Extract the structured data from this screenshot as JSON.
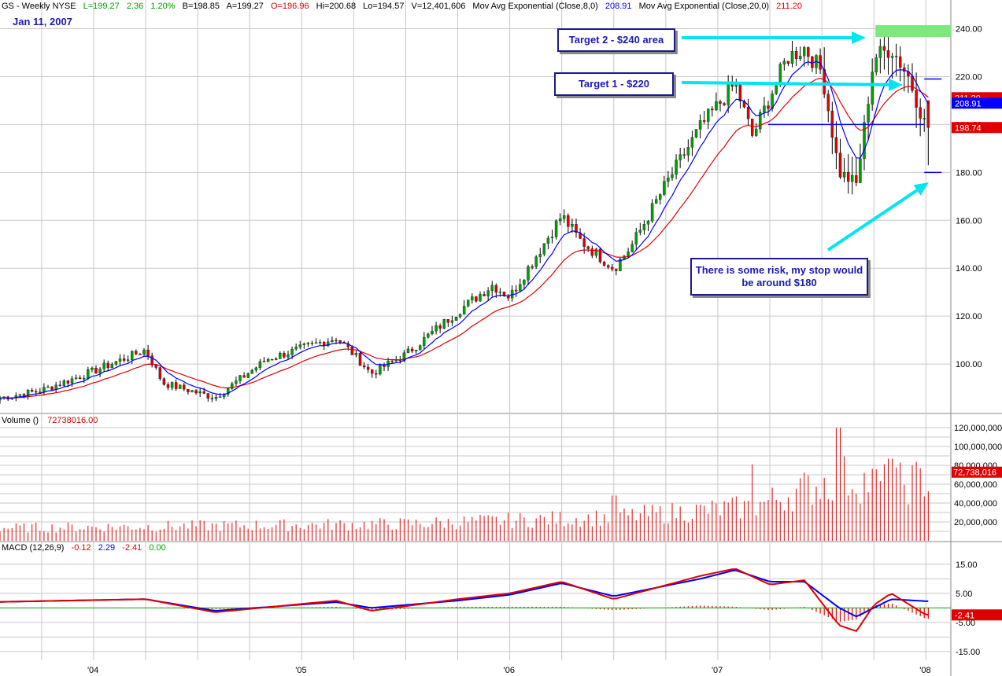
{
  "header": {
    "symbol": "GS - Weekly  NYSE",
    "last": "L=199.27",
    "change": "2.36",
    "change_pct": "1.20%",
    "bid": "B=198.85",
    "ask": "A=199.27",
    "open": "O=196.96",
    "high": "Hi=200.68",
    "low": "Lo=194.57",
    "volume": "V=12,401,606",
    "ma8_label": "Mov Avg Exponential (Close,8,0)",
    "ma8_value": "208.91",
    "ma20_label": "Mov Avg Exponential (Close,20,0)",
    "ma20_value": "211.20"
  },
  "date_label": "Jan 11, 2007",
  "volume_pane": {
    "label": "Volume ()",
    "value": "72738016.00"
  },
  "macd_pane": {
    "label": "MACD (12,26,9)",
    "v1": "-0.12",
    "v2": "2.29",
    "v3": "-2.41",
    "v4": "0.00"
  },
  "annotations": {
    "target2": "Target 2 - $240 area",
    "target1": "Target 1 - $220",
    "stop_line1": "There is some risk, my stop would",
    "stop_line2": "be around $180"
  },
  "colors": {
    "up": "#00a000",
    "down": "#e00000",
    "ema8": "#0000ff",
    "ema20": "#e00000",
    "arrow": "#00e5ee",
    "target_zone": "#7ee87e",
    "grid": "#c8c8c8",
    "annotation_text": "#1a1ab4"
  },
  "chart_data": [
    {
      "type": "candlestick",
      "title": "GS - Weekly NYSE",
      "x_ticks": [
        "'04",
        "'05",
        "'06",
        "'07",
        "'08"
      ],
      "y_ticks": [
        100,
        120,
        140,
        160,
        180,
        200,
        220,
        240
      ],
      "ylim": [
        80,
        252
      ],
      "grid": true,
      "price_tags": [
        {
          "value": 211.2,
          "label": "211.20",
          "color": "#e00000"
        },
        {
          "value": 208.91,
          "label": "208.91",
          "color": "#0000ff"
        },
        {
          "value": 198.74,
          "label": "198.74",
          "color": "#e00000"
        }
      ],
      "key_points": [
        {
          "date": "2003-07",
          "price": 85
        },
        {
          "date": "2003-10",
          "price": 89
        },
        {
          "date": "2004-01",
          "price": 97
        },
        {
          "date": "2004-04",
          "price": 106
        },
        {
          "date": "2004-05",
          "price": 92
        },
        {
          "date": "2004-08",
          "price": 86
        },
        {
          "date": "2004-11",
          "price": 102
        },
        {
          "date": "2005-03",
          "price": 111
        },
        {
          "date": "2005-04",
          "price": 104
        },
        {
          "date": "2005-05",
          "price": 96
        },
        {
          "date": "2005-07",
          "price": 104
        },
        {
          "date": "2005-10",
          "price": 122
        },
        {
          "date": "2005-12",
          "price": 133
        },
        {
          "date": "2006-01",
          "price": 128
        },
        {
          "date": "2006-04",
          "price": 162
        },
        {
          "date": "2006-05",
          "price": 152
        },
        {
          "date": "2006-07",
          "price": 140
        },
        {
          "date": "2006-08",
          "price": 149
        },
        {
          "date": "2006-10",
          "price": 175
        },
        {
          "date": "2006-12",
          "price": 199
        },
        {
          "date": "2007-02",
          "price": 217
        },
        {
          "date": "2007-03",
          "price": 195
        },
        {
          "date": "2007-05",
          "price": 228
        },
        {
          "date": "2007-06",
          "price": 232
        },
        {
          "date": "2007-07",
          "price": 222
        },
        {
          "date": "2007-08",
          "price": 180
        },
        {
          "date": "2007-09",
          "price": 175
        },
        {
          "date": "2007-10",
          "price": 228
        },
        {
          "date": "2007-11",
          "price": 232
        },
        {
          "date": "2007-12",
          "price": 220
        },
        {
          "date": "2008-01",
          "price": 199
        }
      ],
      "levels": [
        {
          "name": "target-2-zone",
          "from": 236.5,
          "to": 241.5,
          "date_from": "2007-10",
          "date_to": "2008-01"
        },
        {
          "name": "target-1-line",
          "value": 219,
          "date_from": "2007-12",
          "date_to": "2008-01"
        },
        {
          "name": "support-line",
          "value": 200,
          "date_from": "2007-03",
          "date_to": "2007-12"
        },
        {
          "name": "stop-line",
          "value": 180,
          "date_from": "2007-12",
          "date_to": "2008-01"
        }
      ]
    },
    {
      "type": "bar",
      "title": "Volume ()",
      "y_ticks": [
        20000000,
        40000000,
        60000000,
        80000000,
        100000000,
        120000000
      ],
      "y_tick_labels": [
        "20,000,000",
        "40,000,000",
        "60,000,000",
        "80,000,000",
        "100,000,000",
        "120,000,000"
      ],
      "ylim": [
        0,
        125000000
      ],
      "last_value": "72,738,016",
      "key_points": [
        {
          "date": "2003-07",
          "volume": 15000000
        },
        {
          "date": "2005-07",
          "volume": 20000000
        },
        {
          "date": "2006-07",
          "volume": 28000000
        },
        {
          "date": "2007-03",
          "volume": 40000000
        },
        {
          "date": "2007-08",
          "volume": 75000000
        },
        {
          "date": "2007-11",
          "volume": 65000000
        },
        {
          "date": "2008-01",
          "volume": 72738016
        }
      ],
      "peaks": [
        {
          "date": "2006-07",
          "volume": 48000000
        },
        {
          "date": "2007-03",
          "volume": 81000000
        },
        {
          "date": "2007-08",
          "volume": 120000000
        },
        {
          "date": "2007-11",
          "volume": 87000000
        }
      ]
    },
    {
      "type": "line",
      "title": "MACD (12,26,9)",
      "y_ticks": [
        15,
        5,
        -5,
        -15
      ],
      "y_tick_labels": [
        "15.00",
        "5.00",
        "-5.00",
        "-15.00"
      ],
      "ylim": [
        -18,
        19
      ],
      "last_value": "-2.41",
      "series": [
        {
          "name": "MACD",
          "color": "#e00000",
          "points": [
            [
              "2003-07",
              2
            ],
            [
              "2004-04",
              3
            ],
            [
              "2004-08",
              -1.5
            ],
            [
              "2005-03",
              2.5
            ],
            [
              "2005-05",
              -1
            ],
            [
              "2005-10",
              3
            ],
            [
              "2006-01",
              5
            ],
            [
              "2006-04",
              9
            ],
            [
              "2006-07",
              3
            ],
            [
              "2006-12",
              11
            ],
            [
              "2007-02",
              13.5
            ],
            [
              "2007-04",
              8
            ],
            [
              "2007-06",
              9.5
            ],
            [
              "2007-08",
              -6
            ],
            [
              "2007-09",
              -8
            ],
            [
              "2007-10",
              1
            ],
            [
              "2007-11",
              5
            ],
            [
              "2008-01",
              -2.4
            ]
          ]
        },
        {
          "name": "Signal",
          "color": "#0000ff",
          "points": [
            [
              "2003-07",
              2
            ],
            [
              "2004-04",
              3
            ],
            [
              "2004-08",
              -1
            ],
            [
              "2005-03",
              2
            ],
            [
              "2005-05",
              0
            ],
            [
              "2005-10",
              2.5
            ],
            [
              "2006-01",
              4.5
            ],
            [
              "2006-04",
              8.5
            ],
            [
              "2006-07",
              4
            ],
            [
              "2006-12",
              10
            ],
            [
              "2007-02",
              13
            ],
            [
              "2007-04",
              9
            ],
            [
              "2007-06",
              9
            ],
            [
              "2007-08",
              0
            ],
            [
              "2007-09",
              -3
            ],
            [
              "2007-11",
              3
            ],
            [
              "2008-01",
              2.3
            ]
          ]
        }
      ]
    }
  ]
}
